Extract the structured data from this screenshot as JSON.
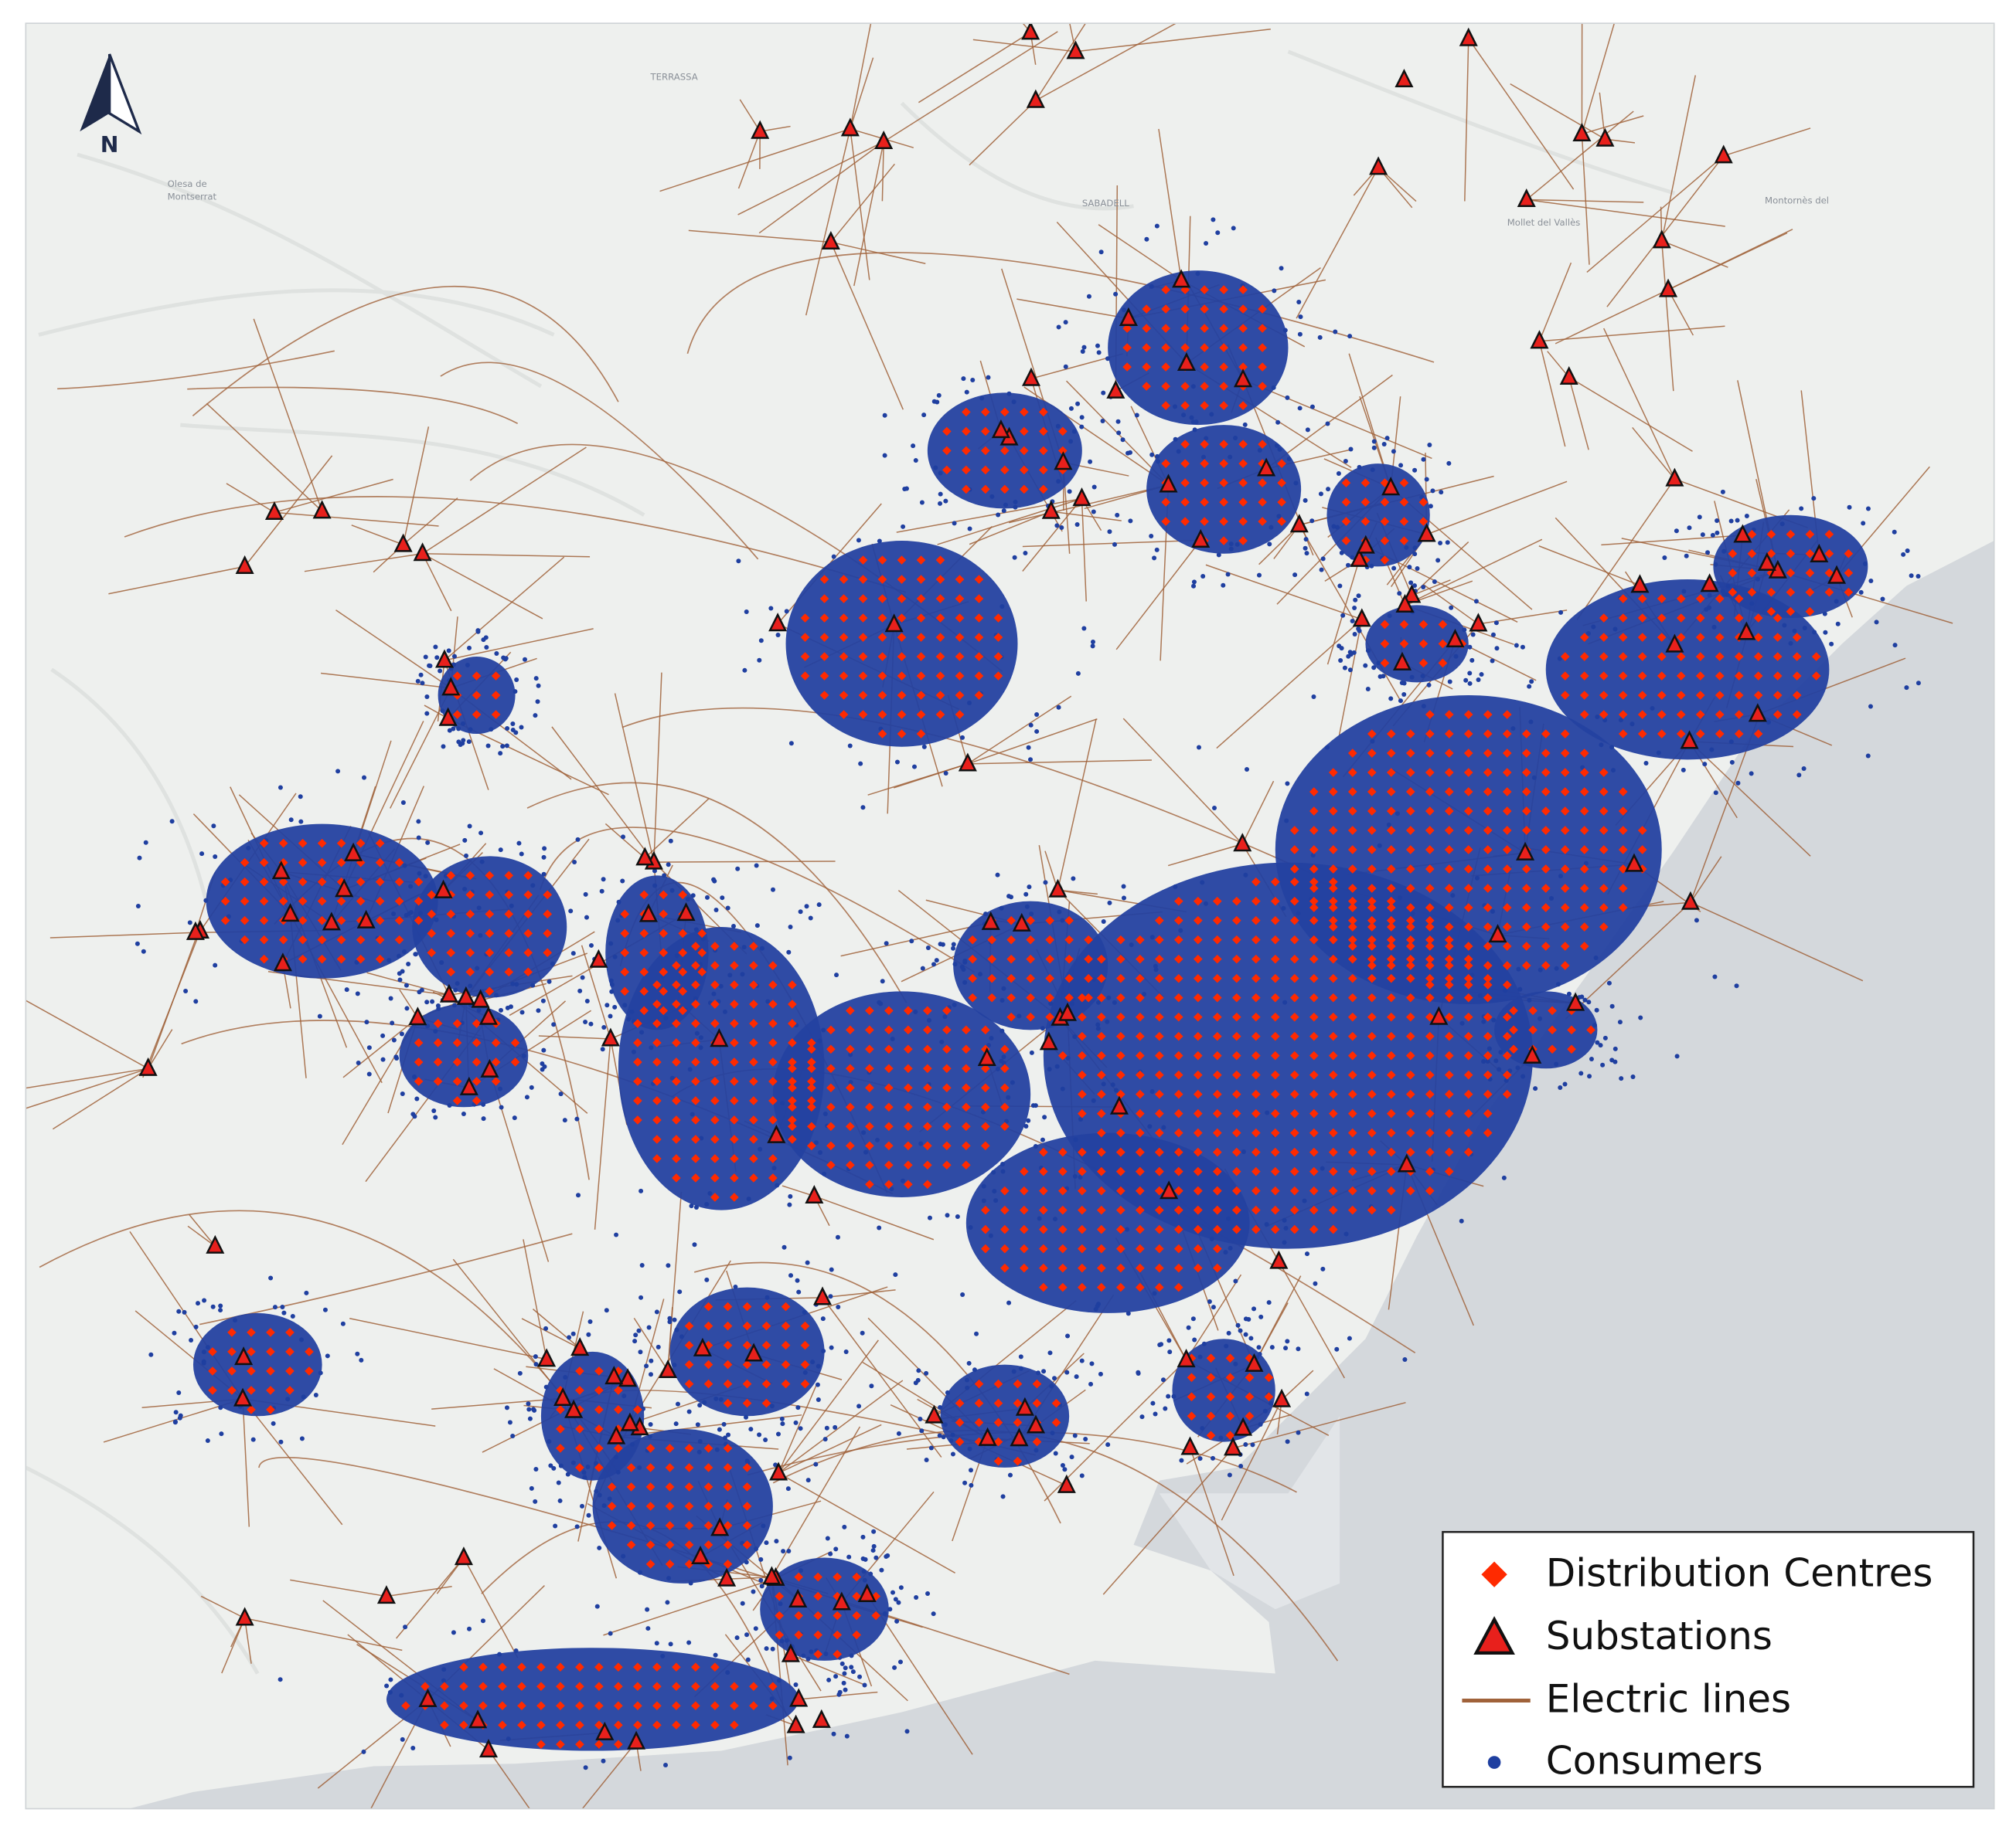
{
  "legend": {
    "items": [
      "Distribution Centres",
      "Substations",
      "Electric lines",
      "Consumers"
    ]
  },
  "north_arrow": {
    "label": "N"
  },
  "place_labels": [
    "TERRASSA",
    "Olesa de",
    "Montserrat",
    "SABADELL",
    "Mollet del Vallès",
    "Montornès del"
  ]
}
